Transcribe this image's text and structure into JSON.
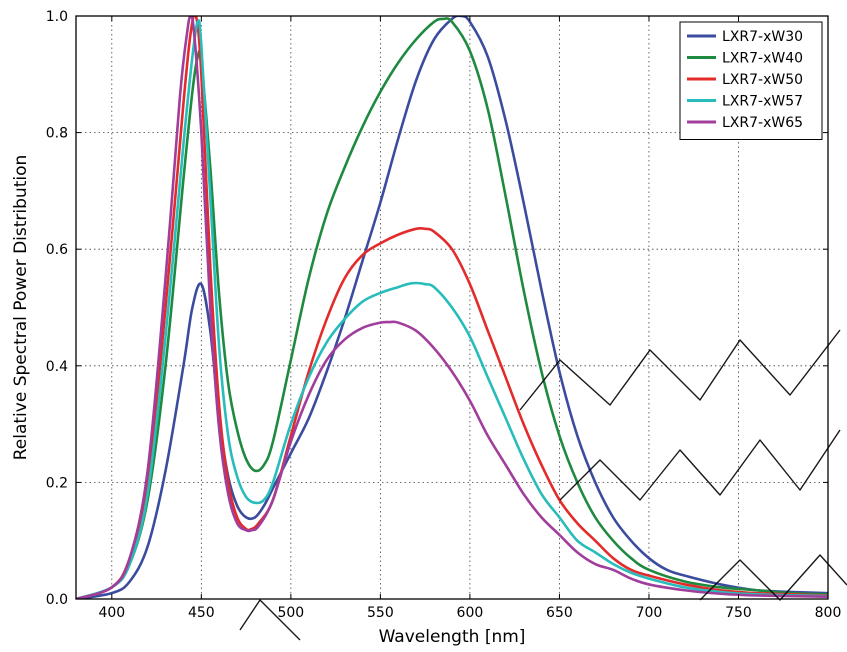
{
  "chart_data": {
    "type": "line",
    "title": "",
    "xlabel": "Wavelength [nm]",
    "ylabel": "Relative Spectral Power Distribution",
    "xlim": [
      380,
      800
    ],
    "ylim": [
      0,
      1.0
    ],
    "x_ticks": [
      400,
      450,
      500,
      550,
      600,
      650,
      700,
      750,
      800
    ],
    "y_ticks": [
      0.0,
      0.2,
      0.4,
      0.6,
      0.8,
      1.0
    ],
    "x_tick_labels": [
      "400",
      "450",
      "500",
      "550",
      "600",
      "650",
      "700",
      "750",
      "800"
    ],
    "y_tick_labels": [
      "0.0",
      "0.2",
      "0.4",
      "0.6",
      "0.8",
      "1.0"
    ],
    "grid": true,
    "legend_position": "top-right",
    "watermark": "NOT RECOMMENDED FOR NEW DESIGNS",
    "series": [
      {
        "name": "LXR7-xW30",
        "color": "#3b4c9e",
        "x": [
          380,
          400,
          410,
          420,
          430,
          440,
          445,
          450,
          455,
          460,
          465,
          470,
          475,
          480,
          485,
          490,
          500,
          510,
          520,
          530,
          540,
          550,
          560,
          570,
          580,
          590,
          595,
          600,
          610,
          620,
          630,
          640,
          650,
          660,
          670,
          680,
          690,
          700,
          710,
          720,
          740,
          760,
          780,
          800
        ],
        "y": [
          0.0,
          0.01,
          0.03,
          0.09,
          0.22,
          0.4,
          0.5,
          0.54,
          0.46,
          0.31,
          0.21,
          0.16,
          0.14,
          0.14,
          0.16,
          0.19,
          0.25,
          0.31,
          0.39,
          0.48,
          0.58,
          0.68,
          0.79,
          0.89,
          0.96,
          0.995,
          1.0,
          0.99,
          0.93,
          0.82,
          0.68,
          0.53,
          0.39,
          0.28,
          0.2,
          0.14,
          0.1,
          0.07,
          0.05,
          0.04,
          0.025,
          0.015,
          0.012,
          0.01
        ]
      },
      {
        "name": "LXR7-xW40",
        "color": "#1e8a40",
        "x": [
          380,
          400,
          410,
          420,
          430,
          440,
          445,
          448,
          450,
          455,
          460,
          465,
          470,
          475,
          480,
          485,
          490,
          500,
          510,
          520,
          530,
          540,
          550,
          560,
          570,
          580,
          585,
          590,
          600,
          610,
          620,
          630,
          640,
          650,
          660,
          670,
          680,
          690,
          700,
          720,
          740,
          760,
          780,
          800
        ],
        "y": [
          0.0,
          0.02,
          0.06,
          0.17,
          0.4,
          0.72,
          0.87,
          0.93,
          0.92,
          0.74,
          0.52,
          0.37,
          0.29,
          0.24,
          0.22,
          0.23,
          0.27,
          0.41,
          0.55,
          0.66,
          0.74,
          0.81,
          0.87,
          0.92,
          0.96,
          0.99,
          0.995,
          0.99,
          0.94,
          0.84,
          0.69,
          0.53,
          0.39,
          0.28,
          0.2,
          0.14,
          0.1,
          0.07,
          0.05,
          0.03,
          0.02,
          0.015,
          0.01,
          0.008
        ]
      },
      {
        "name": "LXR7-xW50",
        "color": "#e32b2b",
        "x": [
          380,
          400,
          410,
          420,
          430,
          440,
          444,
          447,
          450,
          455,
          460,
          465,
          470,
          475,
          478,
          482,
          490,
          500,
          510,
          520,
          530,
          540,
          550,
          560,
          570,
          575,
          580,
          590,
          600,
          610,
          620,
          630,
          640,
          650,
          660,
          670,
          680,
          690,
          700,
          720,
          740,
          760,
          780,
          800
        ],
        "y": [
          0.0,
          0.02,
          0.07,
          0.2,
          0.5,
          0.85,
          0.97,
          1.0,
          0.9,
          0.57,
          0.33,
          0.2,
          0.14,
          0.12,
          0.12,
          0.13,
          0.17,
          0.28,
          0.39,
          0.48,
          0.55,
          0.59,
          0.61,
          0.625,
          0.635,
          0.635,
          0.63,
          0.6,
          0.54,
          0.46,
          0.38,
          0.3,
          0.23,
          0.17,
          0.13,
          0.1,
          0.07,
          0.05,
          0.04,
          0.025,
          0.015,
          0.01,
          0.008,
          0.006
        ]
      },
      {
        "name": "LXR7-xW57",
        "color": "#28bcbc",
        "x": [
          380,
          400,
          410,
          420,
          430,
          440,
          445,
          448,
          450,
          455,
          460,
          465,
          470,
          475,
          480,
          485,
          490,
          500,
          510,
          520,
          530,
          540,
          550,
          560,
          565,
          570,
          575,
          580,
          590,
          600,
          610,
          620,
          630,
          640,
          650,
          660,
          670,
          680,
          690,
          700,
          720,
          740,
          760,
          800
        ],
        "y": [
          0.0,
          0.02,
          0.06,
          0.18,
          0.45,
          0.78,
          0.93,
          0.99,
          0.95,
          0.69,
          0.43,
          0.28,
          0.21,
          0.175,
          0.165,
          0.17,
          0.2,
          0.3,
          0.38,
          0.44,
          0.48,
          0.51,
          0.525,
          0.535,
          0.54,
          0.542,
          0.54,
          0.535,
          0.5,
          0.45,
          0.38,
          0.31,
          0.24,
          0.18,
          0.14,
          0.1,
          0.08,
          0.06,
          0.045,
          0.035,
          0.02,
          0.012,
          0.008,
          0.005
        ]
      },
      {
        "name": "LXR7-xW65",
        "color": "#a13d9a",
        "x": [
          380,
          400,
          410,
          420,
          430,
          438,
          442,
          444,
          446,
          450,
          455,
          460,
          465,
          470,
          475,
          478,
          482,
          490,
          500,
          510,
          520,
          530,
          540,
          550,
          555,
          560,
          570,
          580,
          590,
          600,
          610,
          620,
          630,
          640,
          650,
          660,
          670,
          680,
          690,
          700,
          720,
          740,
          760,
          800
        ],
        "y": [
          0.0,
          0.02,
          0.07,
          0.22,
          0.55,
          0.86,
          0.97,
          1.0,
          0.97,
          0.8,
          0.5,
          0.29,
          0.18,
          0.13,
          0.118,
          0.118,
          0.125,
          0.17,
          0.27,
          0.35,
          0.41,
          0.445,
          0.465,
          0.474,
          0.475,
          0.474,
          0.46,
          0.43,
          0.39,
          0.34,
          0.28,
          0.23,
          0.18,
          0.14,
          0.11,
          0.08,
          0.06,
          0.05,
          0.035,
          0.025,
          0.015,
          0.009,
          0.006,
          0.004
        ]
      }
    ]
  }
}
